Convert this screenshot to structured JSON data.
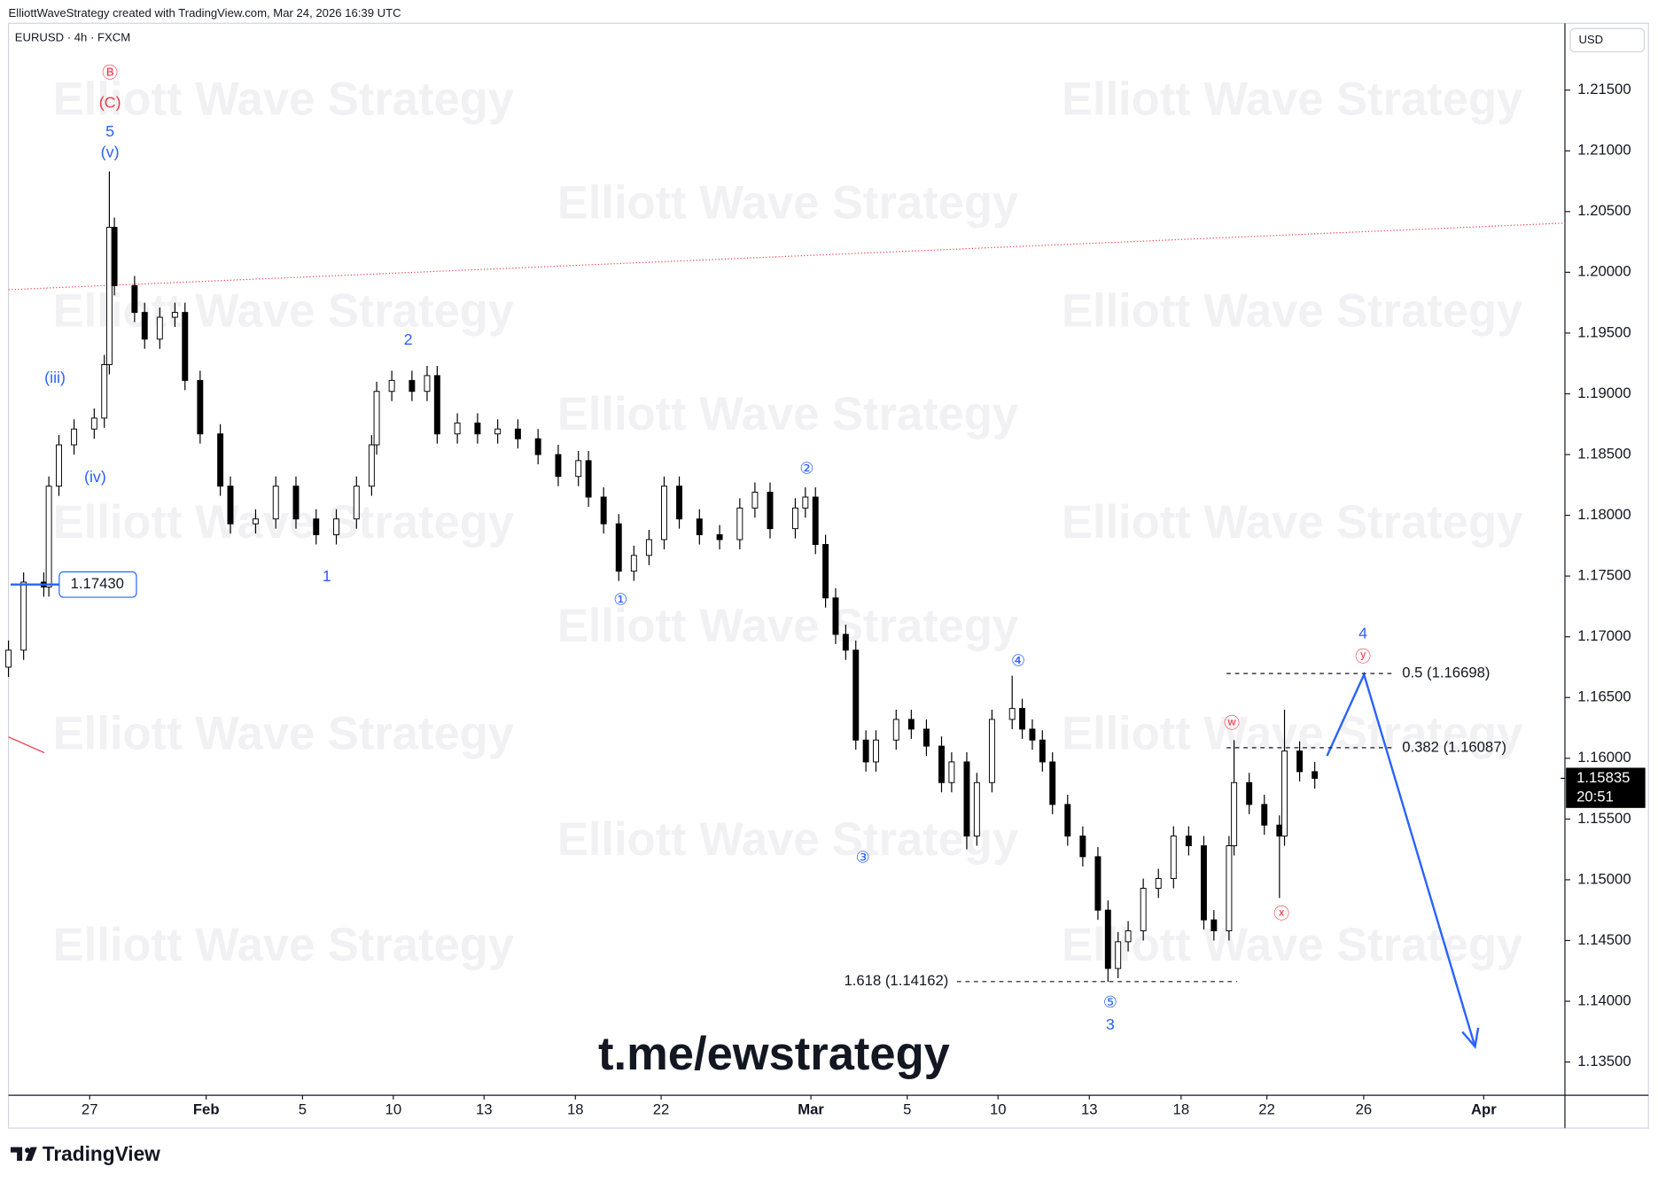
{
  "header": {
    "credit": "ElliottWaveStrategy created with TradingView.com, Mar 24, 2026 16:39 UTC",
    "brand": "TradingView"
  },
  "chart_data": {
    "type": "candlestick",
    "title": "EURUSD · 4h · FXCM",
    "currency": "USD",
    "watermark": "Elliott Wave Strategy",
    "link": "t.me/ewstrategy",
    "up_color": "#ffffff",
    "down_color": "#000000",
    "x": [
      0,
      3,
      7,
      8,
      10,
      13,
      17,
      19,
      20,
      21,
      25,
      27,
      30,
      33,
      35,
      38,
      42,
      44,
      49,
      53,
      57,
      61,
      65,
      69,
      72,
      73,
      76,
      80,
      83,
      85,
      89,
      93,
      97,
      101,
      105,
      109,
      113,
      115,
      118,
      121,
      124,
      127,
      130,
      133,
      137,
      141,
      145,
      148,
      151,
      156,
      158,
      160,
      162,
      164,
      166,
      168,
      170,
      172,
      176,
      179,
      182,
      185,
      187,
      190,
      192,
      195,
      199,
      201,
      203,
      205,
      207,
      210,
      213,
      216,
      218,
      220,
      222,
      225,
      228,
      231,
      234,
      237,
      239,
      242,
      243,
      246,
      249,
      252,
      253,
      256,
      259
    ],
    "open": [
      1.1675,
      1.1689,
      1.1745,
      1.1741,
      1.1824,
      1.1858,
      1.1871,
      1.188,
      1.1924,
      1.2037,
      1.1989,
      1.1967,
      1.1945,
      1.1963,
      1.1967,
      1.1911,
      1.1867,
      1.1824,
      1.1793,
      1.1797,
      1.1824,
      1.1797,
      1.1784,
      1.1797,
      1.1824,
      1.1858,
      1.1902,
      1.1911,
      1.1902,
      1.1915,
      1.1867,
      1.1876,
      1.1867,
      1.1871,
      1.1863,
      1.185,
      1.1832,
      1.1845,
      1.1815,
      1.1793,
      1.1754,
      1.1767,
      1.178,
      1.1824,
      1.1797,
      1.1784,
      1.178,
      1.1806,
      1.1819,
      1.1789,
      1.1806,
      1.1815,
      1.1776,
      1.1732,
      1.1702,
      1.1689,
      1.1615,
      1.1597,
      1.1615,
      1.1632,
      1.1624,
      1.161,
      1.158,
      1.1597,
      1.1536,
      1.158,
      1.1632,
      1.1641,
      1.1624,
      1.1615,
      1.1597,
      1.1562,
      1.1536,
      1.1519,
      1.1475,
      1.1427,
      1.1449,
      1.1458,
      1.1493,
      1.1501,
      1.1536,
      1.1528,
      1.1467,
      1.1458,
      1.1528,
      1.158,
      1.1562,
      1.1545,
      1.1536,
      1.1606,
      1.1589
    ],
    "high": [
      1.1697,
      1.1753,
      1.1753,
      1.1832,
      1.1866,
      1.1879,
      1.1888,
      1.1932,
      1.2083,
      1.2045,
      1.1997,
      1.1975,
      1.1971,
      1.1975,
      1.1975,
      1.1919,
      1.1875,
      1.1832,
      1.1805,
      1.1832,
      1.1832,
      1.1805,
      1.1805,
      1.1832,
      1.1866,
      1.191,
      1.1919,
      1.1919,
      1.1923,
      1.1923,
      1.1884,
      1.1884,
      1.1879,
      1.1879,
      1.1871,
      1.1858,
      1.1853,
      1.1853,
      1.1823,
      1.1801,
      1.1775,
      1.1788,
      1.1832,
      1.1832,
      1.1805,
      1.1792,
      1.1814,
      1.1827,
      1.1827,
      1.1814,
      1.1823,
      1.1823,
      1.1784,
      1.174,
      1.171,
      1.1697,
      1.1623,
      1.1623,
      1.164,
      1.164,
      1.1632,
      1.1618,
      1.1605,
      1.1605,
      1.1588,
      1.164,
      1.1668,
      1.1649,
      1.1632,
      1.1623,
      1.1605,
      1.157,
      1.1544,
      1.1527,
      1.1483,
      1.1457,
      1.1466,
      1.1501,
      1.1509,
      1.1544,
      1.1544,
      1.1536,
      1.1475,
      1.1536,
      1.1615,
      1.1588,
      1.157,
      1.1553,
      1.164,
      1.1614,
      1.1597
    ],
    "low": [
      1.1667,
      1.1681,
      1.1733,
      1.1733,
      1.1816,
      1.185,
      1.1863,
      1.1872,
      1.1916,
      1.1981,
      1.1959,
      1.1937,
      1.1937,
      1.1955,
      1.1903,
      1.1859,
      1.1816,
      1.1785,
      1.1785,
      1.1789,
      1.1789,
      1.1776,
      1.1776,
      1.1789,
      1.1816,
      1.185,
      1.1894,
      1.1894,
      1.1894,
      1.1859,
      1.1859,
      1.1859,
      1.1859,
      1.1855,
      1.1842,
      1.1824,
      1.1824,
      1.1807,
      1.1785,
      1.1746,
      1.1746,
      1.1759,
      1.1772,
      1.1789,
      1.1776,
      1.1772,
      1.1772,
      1.1798,
      1.1781,
      1.1781,
      1.1798,
      1.1768,
      1.1724,
      1.1694,
      1.1681,
      1.1607,
      1.1589,
      1.1589,
      1.1607,
      1.1616,
      1.1602,
      1.1572,
      1.1572,
      1.1525,
      1.1528,
      1.1572,
      1.1624,
      1.1616,
      1.1607,
      1.1589,
      1.1554,
      1.1528,
      1.1511,
      1.1467,
      1.1416,
      1.1419,
      1.1441,
      1.145,
      1.1485,
      1.1493,
      1.152,
      1.1459,
      1.145,
      1.145,
      1.152,
      1.1554,
      1.1537,
      1.1485,
      1.1528,
      1.1581,
      1.1575
    ],
    "close": [
      1.1689,
      1.1745,
      1.1741,
      1.1824,
      1.1858,
      1.1871,
      1.188,
      1.1924,
      1.2037,
      1.1989,
      1.1967,
      1.1945,
      1.1963,
      1.1967,
      1.1911,
      1.1867,
      1.1824,
      1.1793,
      1.1797,
      1.1824,
      1.1797,
      1.1784,
      1.1797,
      1.1824,
      1.1858,
      1.1902,
      1.1911,
      1.1902,
      1.1915,
      1.1867,
      1.1876,
      1.1867,
      1.1871,
      1.1863,
      1.185,
      1.1832,
      1.1845,
      1.1815,
      1.1793,
      1.1754,
      1.1767,
      1.178,
      1.1824,
      1.1797,
      1.1784,
      1.178,
      1.1806,
      1.1819,
      1.1789,
      1.1806,
      1.1815,
      1.1776,
      1.1732,
      1.1702,
      1.1689,
      1.1615,
      1.1597,
      1.1615,
      1.1632,
      1.1624,
      1.161,
      1.158,
      1.1597,
      1.1536,
      1.158,
      1.1632,
      1.1641,
      1.1624,
      1.1615,
      1.1597,
      1.1562,
      1.1536,
      1.1519,
      1.1475,
      1.1427,
      1.1449,
      1.1458,
      1.1493,
      1.1501,
      1.1536,
      1.1528,
      1.1467,
      1.1458,
      1.1528,
      1.158,
      1.1562,
      1.1545,
      1.1536,
      1.1606,
      1.1589,
      1.15835
    ],
    "xlim": [
      0,
      308.6
    ],
    "xticks": [
      {
        "value": 16.1,
        "label": "27"
      },
      {
        "value": 39.2,
        "label": "Feb"
      },
      {
        "value": 58.3,
        "label": "5"
      },
      {
        "value": 76.3,
        "label": "10"
      },
      {
        "value": 94.3,
        "label": "13"
      },
      {
        "value": 112.4,
        "label": "18"
      },
      {
        "value": 129.4,
        "label": "22"
      },
      {
        "value": 159.1,
        "label": "Mar"
      },
      {
        "value": 178.2,
        "label": "5"
      },
      {
        "value": 196.2,
        "label": "10"
      },
      {
        "value": 214.3,
        "label": "13"
      },
      {
        "value": 232.5,
        "label": "18"
      },
      {
        "value": 249.5,
        "label": "22"
      },
      {
        "value": 268.7,
        "label": "26"
      },
      {
        "value": 292.5,
        "label": "Apr"
      }
    ],
    "ylim": [
      1.13226,
      1.2205
    ],
    "yticks": [
      {
        "value": 1.135,
        "label": "1.13500"
      },
      {
        "value": 1.14,
        "label": "1.14000"
      },
      {
        "value": 1.145,
        "label": "1.14500"
      },
      {
        "value": 1.15,
        "label": "1.15000"
      },
      {
        "value": 1.155,
        "label": "1.15500"
      },
      {
        "value": 1.16,
        "label": "1.16000"
      },
      {
        "value": 1.165,
        "label": "1.16500"
      },
      {
        "value": 1.17,
        "label": "1.17000"
      },
      {
        "value": 1.175,
        "label": "1.17500"
      },
      {
        "value": 1.18,
        "label": "1.18000"
      },
      {
        "value": 1.185,
        "label": "1.18500"
      },
      {
        "value": 1.19,
        "label": "1.19000"
      },
      {
        "value": 1.195,
        "label": "1.19500"
      },
      {
        "value": 1.2,
        "label": "1.20000"
      },
      {
        "value": 1.205,
        "label": "1.20500"
      },
      {
        "value": 1.21,
        "label": "1.21000"
      },
      {
        "value": 1.215,
        "label": "1.21500"
      }
    ],
    "fib_levels": [
      {
        "value": 1.16698,
        "label": "0.5 (1.16698)"
      },
      {
        "value": 1.16087,
        "label": "0.382 (1.16087)"
      },
      {
        "value": 1.14162,
        "label": "1.618 (1.14162)"
      }
    ],
    "alert_level": {
      "value": 1.1743,
      "label": "1.17430"
    },
    "countdown": "20:51",
    "annotations": [
      {
        "text": "Ⓑ",
        "color": "#f23645"
      },
      {
        "text": "(C)",
        "color": "#f23645"
      },
      {
        "text": "5",
        "color": "#2962ff"
      },
      {
        "text": "(v)",
        "color": "#2962ff"
      },
      {
        "text": "(iii)",
        "color": "#2962ff"
      },
      {
        "text": "(iv)",
        "color": "#2962ff"
      },
      {
        "text": "1",
        "color": "#2962ff"
      },
      {
        "text": "2",
        "color": "#2962ff"
      },
      {
        "text": "①",
        "color": "#2962ff"
      },
      {
        "text": "②",
        "color": "#2962ff"
      },
      {
        "text": "③",
        "color": "#2962ff"
      },
      {
        "text": "④",
        "color": "#2962ff"
      },
      {
        "text": "⑤",
        "color": "#2962ff"
      },
      {
        "text": "3",
        "color": "#2962ff"
      },
      {
        "text": "4",
        "color": "#2962ff"
      },
      {
        "text": "ⓨ",
        "color": "#f23645"
      },
      {
        "text": "ⓦ",
        "color": "#f23645"
      },
      {
        "text": "ⓧ",
        "color": "#f23645"
      }
    ]
  }
}
